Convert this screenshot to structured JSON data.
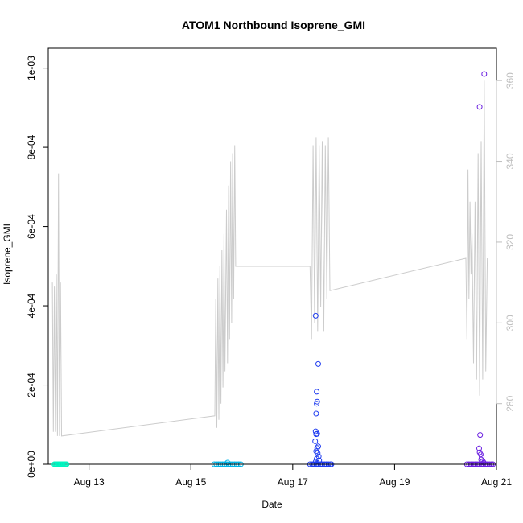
{
  "chart_data": {
    "type": "scatter",
    "title": "ATOM1 Northbound Isoprene_GMI",
    "xlabel": "Date",
    "ylabel": "Isoprene_GMI",
    "x_range_days": [
      12.2,
      21.0
    ],
    "ylim": [
      0,
      0.00105
    ],
    "ylim_right": [
      265,
      368
    ],
    "x_ticks": [
      {
        "value": 13,
        "label": "Aug 13"
      },
      {
        "value": 15,
        "label": "Aug 15"
      },
      {
        "value": 17,
        "label": "Aug 17"
      },
      {
        "value": 19,
        "label": "Aug 19"
      },
      {
        "value": 21,
        "label": "Aug 21"
      }
    ],
    "y_ticks": [
      {
        "value": 0,
        "label": "0e+00"
      },
      {
        "value": 0.0002,
        "label": "2e-04"
      },
      {
        "value": 0.0004,
        "label": "4e-04"
      },
      {
        "value": 0.0006,
        "label": "6e-04"
      },
      {
        "value": 0.0008,
        "label": "8e-04"
      },
      {
        "value": 0.001,
        "label": "1e-03"
      }
    ],
    "y_right_ticks": [
      {
        "value": 280,
        "label": "280"
      },
      {
        "value": 300,
        "label": "300"
      },
      {
        "value": 320,
        "label": "320"
      },
      {
        "value": 340,
        "label": "340"
      },
      {
        "value": 360,
        "label": "360"
      }
    ],
    "colors": {
      "flight1": "#00f5c0",
      "flight2": "#00b4e6",
      "flight3": "#1f3cf0",
      "flight4": "#6a1fe0",
      "line": "#cccccc",
      "right_axis": "#bfbfbf"
    },
    "series": [
      {
        "color_key": "flight1",
        "points": [
          [
            12.32,
            0
          ],
          [
            12.34,
            0
          ],
          [
            12.36,
            0
          ],
          [
            12.38,
            0
          ],
          [
            12.4,
            0
          ],
          [
            12.42,
            0
          ],
          [
            12.44,
            0
          ],
          [
            12.46,
            0
          ],
          [
            12.48,
            0
          ],
          [
            12.5,
            0
          ],
          [
            12.52,
            0
          ],
          [
            12.54,
            0
          ],
          [
            12.56,
            0
          ]
        ]
      },
      {
        "color_key": "flight2",
        "points": [
          [
            15.46,
            0
          ],
          [
            15.5,
            0
          ],
          [
            15.54,
            0
          ],
          [
            15.58,
            0
          ],
          [
            15.62,
            0
          ],
          [
            15.66,
            0
          ],
          [
            15.7,
            0
          ],
          [
            15.74,
            0
          ],
          [
            15.78,
            0
          ],
          [
            15.82,
            0
          ],
          [
            15.86,
            0
          ],
          [
            15.9,
            0
          ],
          [
            15.94,
            0
          ],
          [
            15.98,
            0
          ],
          [
            15.72,
            4e-06
          ]
        ]
      },
      {
        "color_key": "flight3",
        "points": [
          [
            17.34,
            0
          ],
          [
            17.38,
            0
          ],
          [
            17.42,
            0
          ],
          [
            17.46,
            0
          ],
          [
            17.5,
            0
          ],
          [
            17.54,
            0
          ],
          [
            17.58,
            0
          ],
          [
            17.62,
            0
          ],
          [
            17.66,
            0
          ],
          [
            17.7,
            0
          ],
          [
            17.74,
            0
          ],
          [
            17.76,
            0
          ],
          [
            17.45,
            0.000375
          ],
          [
            17.5,
            0.000253
          ],
          [
            17.47,
            0.000183
          ],
          [
            17.48,
            0.000158
          ],
          [
            17.47,
            0.000153
          ],
          [
            17.46,
            0.000128
          ],
          [
            17.45,
            8.3e-05
          ],
          [
            17.48,
            7.7e-05
          ],
          [
            17.46,
            7.6e-05
          ],
          [
            17.44,
            5.8e-05
          ],
          [
            17.5,
            4.5e-05
          ],
          [
            17.48,
            4.1e-05
          ],
          [
            17.46,
            3.3e-05
          ],
          [
            17.49,
            2.8e-05
          ],
          [
            17.51,
            2e-05
          ],
          [
            17.47,
            1.4e-05
          ],
          [
            17.52,
            1e-05
          ],
          [
            17.45,
            6e-06
          ]
        ]
      },
      {
        "color_key": "flight4",
        "points": [
          [
            20.42,
            0
          ],
          [
            20.46,
            0
          ],
          [
            20.5,
            0
          ],
          [
            20.54,
            0
          ],
          [
            20.58,
            0
          ],
          [
            20.62,
            0
          ],
          [
            20.66,
            0
          ],
          [
            20.7,
            0
          ],
          [
            20.74,
            0
          ],
          [
            20.78,
            0
          ],
          [
            20.82,
            0
          ],
          [
            20.86,
            0
          ],
          [
            20.9,
            0
          ],
          [
            20.93,
            0
          ],
          [
            20.67,
            0.000902
          ],
          [
            20.76,
            0.000985
          ],
          [
            20.68,
            7.4e-05
          ],
          [
            20.66,
            4e-05
          ],
          [
            20.67,
            3e-05
          ],
          [
            20.69,
            2.5e-05
          ],
          [
            20.71,
            1.8e-05
          ],
          [
            20.7,
            1.2e-05
          ],
          [
            20.73,
            8e-06
          ],
          [
            20.75,
            4e-06
          ]
        ]
      }
    ],
    "line_series": {
      "axis": "right",
      "points": [
        [
          12.28,
          310
        ],
        [
          12.3,
          273
        ],
        [
          12.32,
          309
        ],
        [
          12.34,
          273
        ],
        [
          12.36,
          312
        ],
        [
          12.38,
          272
        ],
        [
          12.4,
          337
        ],
        [
          12.42,
          272
        ],
        [
          12.44,
          310
        ],
        [
          12.46,
          272
        ],
        [
          15.47,
          277
        ],
        [
          15.49,
          306
        ],
        [
          15.51,
          274
        ],
        [
          15.53,
          311
        ],
        [
          15.55,
          276
        ],
        [
          15.57,
          314
        ],
        [
          15.59,
          280
        ],
        [
          15.61,
          318
        ],
        [
          15.63,
          284
        ],
        [
          15.65,
          322
        ],
        [
          15.67,
          288
        ],
        [
          15.7,
          328
        ],
        [
          15.72,
          290
        ],
        [
          15.74,
          334
        ],
        [
          15.76,
          296
        ],
        [
          15.78,
          340
        ],
        [
          15.8,
          300
        ],
        [
          15.82,
          342
        ],
        [
          15.84,
          306
        ],
        [
          15.86,
          344
        ],
        [
          15.88,
          314
        ],
        [
          17.34,
          314
        ],
        [
          17.37,
          296
        ],
        [
          17.4,
          344
        ],
        [
          17.43,
          300
        ],
        [
          17.46,
          346
        ],
        [
          17.49,
          298
        ],
        [
          17.52,
          344
        ],
        [
          17.55,
          304
        ],
        [
          17.58,
          345
        ],
        [
          17.61,
          298
        ],
        [
          17.64,
          344
        ],
        [
          17.67,
          306
        ],
        [
          17.7,
          346
        ],
        [
          17.73,
          308
        ],
        [
          20.4,
          316
        ],
        [
          20.42,
          296
        ],
        [
          20.44,
          338
        ],
        [
          20.46,
          306
        ],
        [
          20.48,
          330
        ],
        [
          20.5,
          312
        ],
        [
          20.52,
          322
        ],
        [
          20.55,
          290
        ],
        [
          20.58,
          330
        ],
        [
          20.61,
          286
        ],
        [
          20.64,
          342
        ],
        [
          20.67,
          282
        ],
        [
          20.7,
          345
        ],
        [
          20.73,
          286
        ],
        [
          20.76,
          360
        ],
        [
          20.79,
          288
        ],
        [
          20.82,
          316
        ]
      ]
    }
  }
}
